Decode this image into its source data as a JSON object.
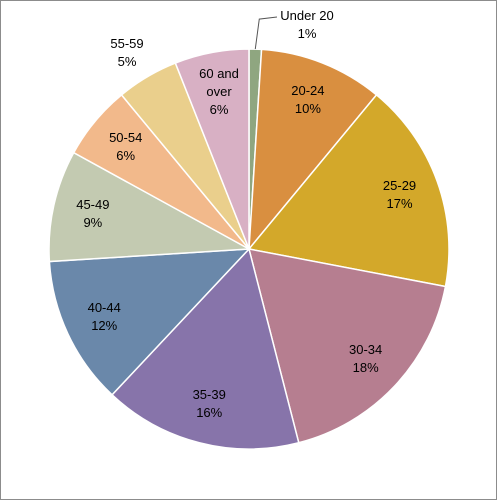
{
  "chart_data": {
    "type": "pie",
    "categories": [
      "Under 20",
      "20-24",
      "25-29",
      "30-34",
      "35-39",
      "40-44",
      "45-49",
      "50-54",
      "55-59",
      "60 and over"
    ],
    "values": [
      1,
      10,
      17,
      18,
      16,
      12,
      9,
      6,
      5,
      6
    ],
    "value_labels": [
      "1%",
      "10%",
      "17%",
      "18%",
      "16%",
      "12%",
      "9%",
      "6%",
      "5%",
      "6%"
    ],
    "colors": [
      "#8fa680",
      "#d98f40",
      "#d3a82a",
      "#b67e90",
      "#8774aa",
      "#6a88aa",
      "#c3cab1",
      "#f2b98b",
      "#eacf8c",
      "#d8b0c4"
    ]
  }
}
